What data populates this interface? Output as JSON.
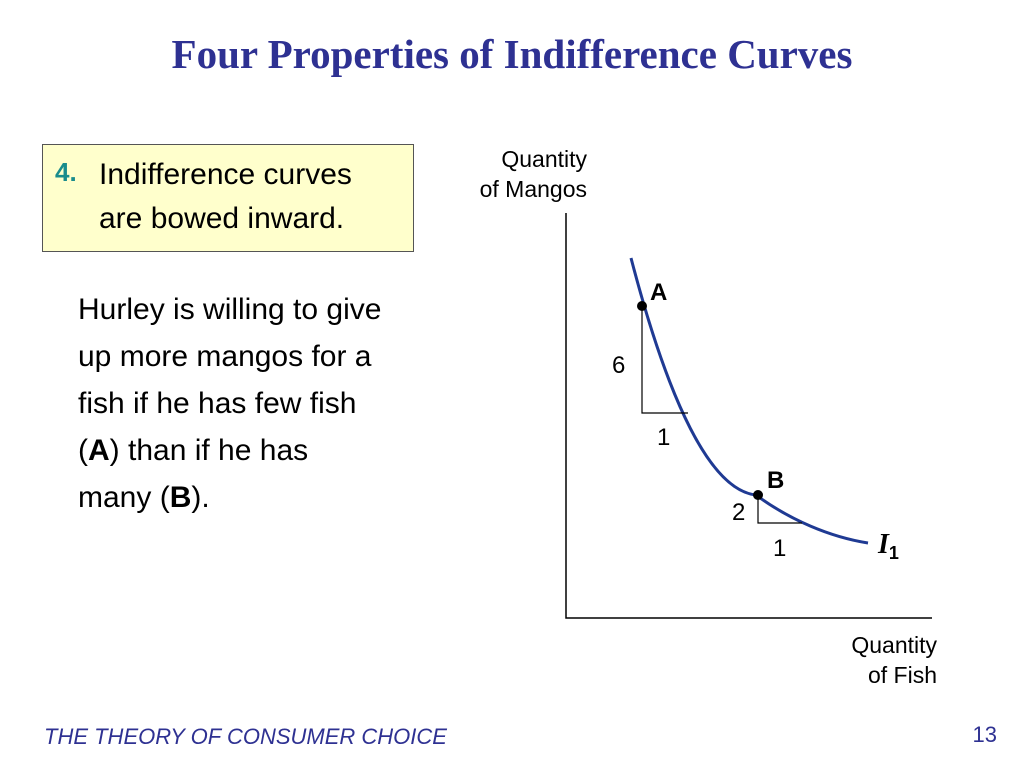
{
  "slide": {
    "title": "Four Properties of Indifference Curves",
    "footer": "THE THEORY OF CONSUMER CHOICE",
    "page_number": "13"
  },
  "callout": {
    "number": "4.",
    "line1": "Indifference curves",
    "line2": "are bowed inward."
  },
  "body": {
    "line1": "Hurley is willing to give",
    "line2": "up more mangos for a",
    "line3": "fish if he has few fish",
    "line4_open": "(",
    "line4_bold": "A",
    "line4_rest": ") than if he has",
    "line5_open": "many (",
    "line5_bold": "B",
    "line5_close": ")."
  },
  "diagram": {
    "y_axis_label_line1": "Quantity",
    "y_axis_label_line2": "of Mangos",
    "x_axis_label_line1": "Quantity",
    "x_axis_label_line2": "of Fish",
    "curve_label": "I",
    "curve_label_subscript": "1",
    "point_a_label": "A",
    "point_b_label": "B",
    "triangle_a_rise": "6",
    "triangle_a_run": "1",
    "triangle_b_rise": "2",
    "triangle_b_run": "1",
    "curve_color": "#1f3a93",
    "axis_color": "#000000"
  },
  "colors": {
    "title": "#2e3192",
    "callout_fill": "#ffffcc",
    "callout_number": "#1a8c8c"
  }
}
